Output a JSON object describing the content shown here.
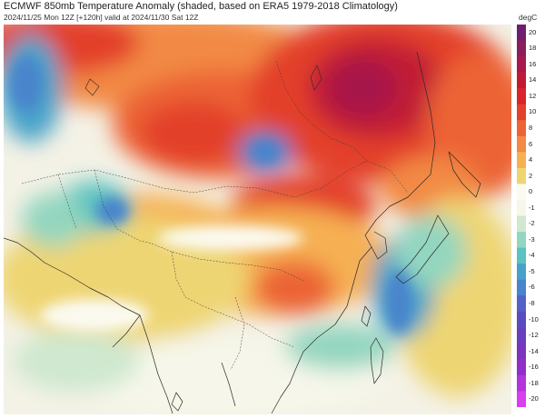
{
  "header": {
    "title": "ECMWF 850mb Temperature Anomaly (shaded, based on ERA5 1979-2018 Climatology)",
    "subtitle": "2024/11/25 Mon 12Z [+120h] valid at 2024/11/30 Sat 12Z"
  },
  "colorbar": {
    "unit": "degC",
    "ticks": [
      "20",
      "18",
      "16",
      "14",
      "12",
      "10",
      "8",
      "6",
      "4",
      "2",
      "0",
      "-1",
      "-2",
      "-3",
      "-4",
      "-5",
      "-6",
      "-8",
      "-10",
      "-12",
      "-14",
      "-16",
      "-18",
      "-20"
    ],
    "colors": [
      "#6e1f6e",
      "#8b1e5c",
      "#a7194a",
      "#c11b34",
      "#d8242a",
      "#e3412b",
      "#ec6436",
      "#f28a45",
      "#f6b052",
      "#eed573",
      "#fbfaf0",
      "#f6f7ea",
      "#cfe8cf",
      "#93d6c0",
      "#5ac2c0",
      "#47a2c9",
      "#4a84cc",
      "#5462c7",
      "#5a4bc0",
      "#6a3fbd",
      "#7a34bd",
      "#9030c8",
      "#b235dc",
      "#d93ef0"
    ]
  }
}
